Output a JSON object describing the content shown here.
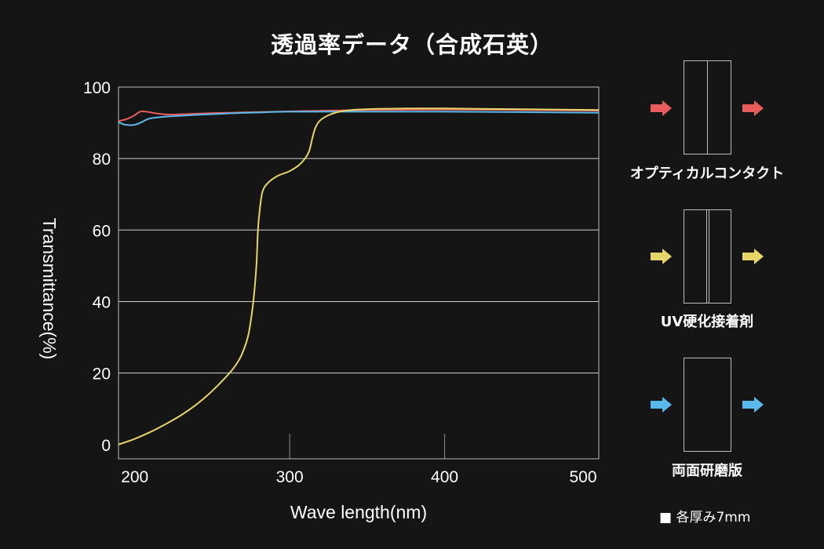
{
  "title": "透過率データ（合成石英）",
  "chart_data": {
    "type": "line",
    "xlabel": "Wave length(nm)",
    "ylabel": "Transmittance(%)",
    "xlim": [
      190,
      500
    ],
    "ylim": [
      -4,
      100
    ],
    "xticks": [
      200,
      300,
      400,
      500
    ],
    "yticks": [
      0,
      20,
      40,
      60,
      80,
      100
    ],
    "grid": "horizontal",
    "series": [
      {
        "color": "#e85c5c",
        "points": [
          [
            190,
            90.5
          ],
          [
            195,
            91
          ],
          [
            200,
            92
          ],
          [
            205,
            93.2
          ],
          [
            215,
            92.6
          ],
          [
            225,
            92.3
          ],
          [
            250,
            92.7
          ],
          [
            300,
            93.2
          ],
          [
            350,
            93.6
          ],
          [
            400,
            93.7
          ],
          [
            450,
            93.6
          ],
          [
            500,
            93.4
          ]
        ]
      },
      {
        "color": "#5ab8ec",
        "points": [
          [
            190,
            90.2
          ],
          [
            194,
            89.5
          ],
          [
            200,
            89.4
          ],
          [
            205,
            90.2
          ],
          [
            210,
            91.2
          ],
          [
            220,
            91.7
          ],
          [
            240,
            92.2
          ],
          [
            260,
            92.6
          ],
          [
            280,
            92.9
          ],
          [
            300,
            93.1
          ],
          [
            350,
            93.1
          ],
          [
            400,
            93.1
          ],
          [
            450,
            93.0
          ],
          [
            500,
            92.8
          ]
        ]
      },
      {
        "color": "#e6d567",
        "points": [
          [
            190,
            0
          ],
          [
            200,
            1.5
          ],
          [
            210,
            3.4
          ],
          [
            220,
            5.6
          ],
          [
            230,
            8.1
          ],
          [
            240,
            11.1
          ],
          [
            250,
            14.8
          ],
          [
            260,
            19.2
          ],
          [
            266,
            22.4
          ],
          [
            270,
            25.6
          ],
          [
            274,
            31
          ],
          [
            277,
            40
          ],
          [
            279,
            50
          ],
          [
            280,
            60
          ],
          [
            281,
            65
          ],
          [
            283,
            70.8
          ],
          [
            287,
            73.4
          ],
          [
            293,
            75.2
          ],
          [
            300,
            76.4
          ],
          [
            306,
            78
          ],
          [
            310,
            79.8
          ],
          [
            313,
            82
          ],
          [
            315,
            85.5
          ],
          [
            317,
            88.5
          ],
          [
            320,
            90.6
          ],
          [
            326,
            92.2
          ],
          [
            335,
            93.3
          ],
          [
            350,
            93.8
          ],
          [
            375,
            94
          ],
          [
            400,
            94
          ],
          [
            450,
            93.8
          ],
          [
            500,
            93.6
          ]
        ]
      }
    ]
  },
  "panels": [
    {
      "label": "オプティカルコンタクト",
      "arrow_color": "#e85c5c"
    },
    {
      "label": "UV硬化接着剤",
      "arrow_color": "#e6d567"
    },
    {
      "label": "両面研磨版",
      "arrow_color": "#5ab8ec"
    }
  ],
  "note": "■ 各厚み7mm"
}
